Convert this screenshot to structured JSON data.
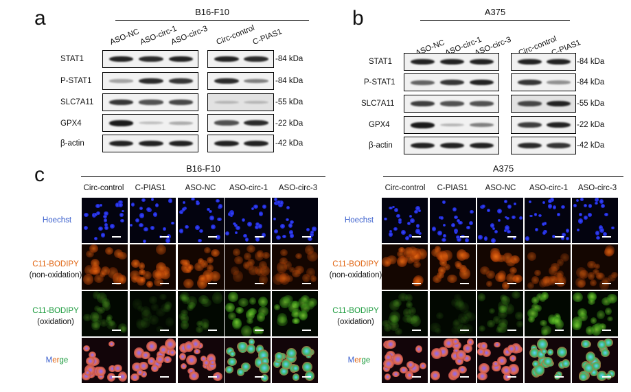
{
  "panel_labels": [
    "a",
    "b",
    "c"
  ],
  "panel_a": {
    "title": "B16-F10",
    "lanes_left": [
      "ASO-NC",
      "ASO-circ-1",
      "ASO-circ-3"
    ],
    "lanes_right": [
      "Circ-control",
      "C-PIAS1"
    ],
    "rows": [
      "STAT1",
      "P-STAT1",
      "SLC7A11",
      "GPX4",
      "β-actin"
    ],
    "kda": [
      "-84 kDa",
      "-84 kDa",
      "-55 kDa",
      "-22 kDa",
      "-42 kDa"
    ]
  },
  "panel_b": {
    "title": "A375",
    "lanes_left": [
      "ASO-NC",
      "ASO-circ-1",
      "ASO-circ-3"
    ],
    "lanes_right": [
      "Circ-control",
      "C-PIAS1"
    ],
    "rows": [
      "STAT1",
      "P-STAT1",
      "SLC7A11",
      "GPX4",
      "β-actin"
    ],
    "kda": [
      "-84 kDa",
      "-84 kDa",
      "-55 kDa",
      "-22 kDa",
      "-42 kDa"
    ]
  },
  "panel_c": {
    "left_title": "B16-F10",
    "right_title": "A375",
    "columns": [
      "Circ-control",
      "C-PIAS1",
      "ASO-NC",
      "ASO-circ-1",
      "ASO-circ-3"
    ],
    "row_labels": {
      "hoechst": "Hoechst",
      "c11_non_a": "C11-BODIPY",
      "c11_non_b": "(non-oxidation)",
      "c11_ox_a": "C11-BODIPY",
      "c11_ox_b": "(oxidation)",
      "merge_m": "M",
      "merge_e": "e",
      "merge_r": "r",
      "merge_g": "g",
      "merge_e2": "e"
    },
    "colors": {
      "hoechst": "#3a5fcd",
      "non_oxidation": "#e0620d",
      "oxidation": "#1a9a3c"
    }
  }
}
